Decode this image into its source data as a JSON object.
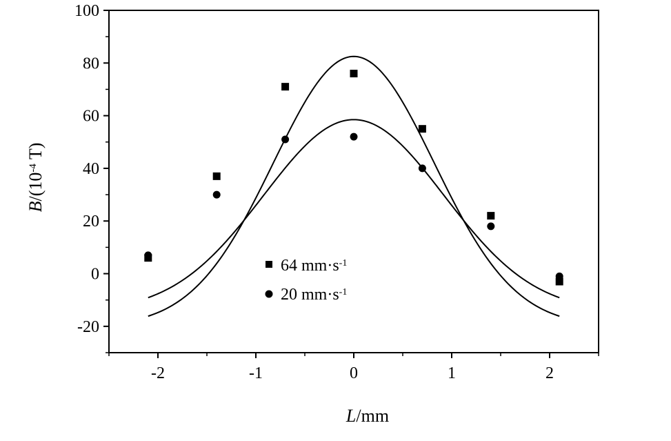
{
  "chart_data": {
    "type": "scatter",
    "xlabel": {
      "italic": "L",
      "rest": "/mm"
    },
    "ylabel": {
      "italic": "B",
      "prefix": "/(10",
      "sup": "-4",
      "suffix": " T)"
    },
    "xlim": [
      -2.5,
      2.5
    ],
    "ylim": [
      -30,
      100
    ],
    "xticks": [
      -2,
      -1,
      0,
      1,
      2
    ],
    "xtick_labels": [
      "-2",
      "-1",
      "0",
      "1",
      "2"
    ],
    "yticks": [
      -20,
      0,
      20,
      40,
      60,
      80,
      100
    ],
    "ytick_labels": [
      "-20",
      "0",
      "20",
      "40",
      "60",
      "80",
      "100"
    ],
    "grid": false,
    "legend_position": "lower-center",
    "series": [
      {
        "name": {
          "base": "64 mm·s",
          "sup": "-1"
        },
        "marker": "square",
        "color": "#000000",
        "x": [
          -2.1,
          -1.4,
          -0.7,
          0,
          0.7,
          1.4,
          2.1
        ],
        "y": [
          6,
          37,
          71,
          76,
          55,
          22,
          -3
        ],
        "fit": {
          "type": "gaussian",
          "offset": -20,
          "amplitude": 102.5,
          "sigma": 0.82,
          "x_range": [
            -2.1,
            2.1
          ]
        }
      },
      {
        "name": {
          "base": "20 mm·s",
          "sup": "-1"
        },
        "marker": "circle",
        "color": "#000000",
        "x": [
          -2.1,
          -1.4,
          -0.7,
          0,
          0.7,
          1.4,
          2.1
        ],
        "y": [
          7,
          30,
          51,
          52,
          40,
          18,
          -1
        ],
        "fit": {
          "type": "gaussian",
          "offset": -14.5,
          "amplitude": 73,
          "sigma": 0.92,
          "x_range": [
            -2.1,
            2.1
          ]
        }
      }
    ]
  }
}
